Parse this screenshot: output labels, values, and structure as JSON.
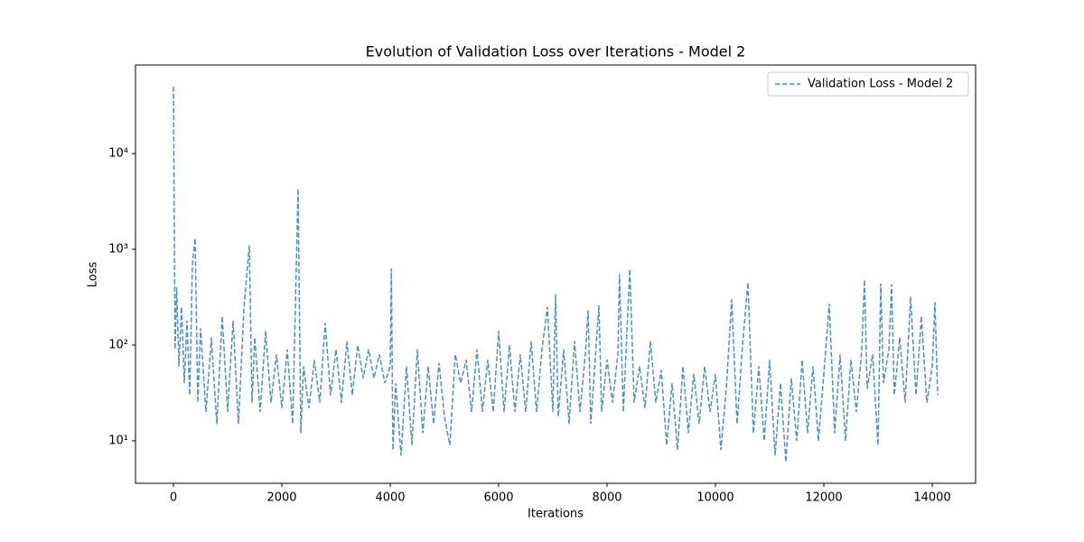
{
  "chart_data": {
    "type": "line",
    "title": "Evolution of Validation Loss over Iterations - Model 2",
    "x_label": "Iterations",
    "y_label": "Loss",
    "x": [
      0,
      30,
      60,
      100,
      150,
      200,
      250,
      300,
      350,
      400,
      450,
      500,
      600,
      700,
      800,
      900,
      1000,
      1100,
      1200,
      1300,
      1400,
      1450,
      1500,
      1600,
      1700,
      1800,
      1900,
      2000,
      2100,
      2200,
      2300,
      2350,
      2400,
      2500,
      2600,
      2700,
      2800,
      2900,
      3000,
      3100,
      3200,
      3300,
      3400,
      3500,
      3600,
      3700,
      3800,
      3900,
      4000,
      4020,
      4050,
      4100,
      4200,
      4300,
      4400,
      4500,
      4600,
      4700,
      4800,
      4900,
      5000,
      5100,
      5200,
      5300,
      5400,
      5500,
      5600,
      5700,
      5800,
      5900,
      6000,
      6100,
      6200,
      6300,
      6400,
      6500,
      6600,
      6700,
      6800,
      6900,
      7000,
      7050,
      7100,
      7200,
      7300,
      7400,
      7500,
      7600,
      7650,
      7700,
      7800,
      7850,
      7900,
      8000,
      8100,
      8200,
      8230,
      8300,
      8420,
      8500,
      8600,
      8700,
      8800,
      8900,
      9000,
      9100,
      9200,
      9300,
      9400,
      9500,
      9600,
      9700,
      9800,
      9900,
      10000,
      10100,
      10200,
      10300,
      10400,
      10500,
      10600,
      10700,
      10800,
      10900,
      11000,
      11100,
      11200,
      11300,
      11400,
      11500,
      11600,
      11700,
      11800,
      11900,
      12000,
      12100,
      12200,
      12300,
      12400,
      12500,
      12600,
      12700,
      12750,
      12800,
      12900,
      13000,
      13050,
      13100,
      13200,
      13250,
      13300,
      13400,
      13500,
      13600,
      13700,
      13800,
      13900,
      14000,
      14050,
      14100
    ],
    "series": [
      {
        "name": "Validation Loss - Model 2",
        "color": "#4b92c6",
        "values": [
          50000,
          90,
          400,
          60,
          250,
          40,
          180,
          30,
          700,
          1300,
          25,
          150,
          20,
          120,
          15,
          200,
          20,
          180,
          15,
          240,
          1100,
          25,
          120,
          20,
          140,
          25,
          80,
          22,
          90,
          15,
          4300,
          12,
          60,
          22,
          70,
          25,
          170,
          30,
          90,
          25,
          110,
          30,
          100,
          45,
          90,
          45,
          80,
          40,
          60,
          630,
          8,
          40,
          7,
          60,
          9,
          90,
          12,
          60,
          15,
          65,
          18,
          9,
          80,
          40,
          70,
          20,
          90,
          20,
          70,
          20,
          140,
          20,
          100,
          20,
          80,
          20,
          110,
          20,
          90,
          250,
          20,
          340,
          18,
          90,
          15,
          110,
          20,
          80,
          230,
          15,
          100,
          260,
          20,
          70,
          25,
          80,
          550,
          20,
          620,
          25,
          60,
          22,
          110,
          25,
          55,
          9,
          40,
          8,
          60,
          12,
          50,
          15,
          60,
          20,
          50,
          8,
          35,
          300,
          15,
          100,
          450,
          12,
          60,
          10,
          70,
          7,
          40,
          6,
          45,
          10,
          70,
          12,
          60,
          10,
          50,
          270,
          12,
          80,
          10,
          70,
          20,
          90,
          480,
          35,
          80,
          9,
          440,
          40,
          90,
          430,
          30,
          120,
          25,
          320,
          30,
          200,
          25,
          60,
          280,
          30
        ]
      }
    ],
    "xlim": [
      -700,
      14800
    ],
    "ylim": [
      3.6,
      84000
    ],
    "y_scale": "log",
    "line_style": "dashed",
    "xticks": [
      0,
      2000,
      4000,
      6000,
      8000,
      10000,
      12000,
      14000
    ],
    "yticks": [
      {
        "value": 10,
        "label": "10¹"
      },
      {
        "value": 100,
        "label": "10²"
      },
      {
        "value": 1000,
        "label": "10³"
      },
      {
        "value": 10000,
        "label": "10⁴"
      }
    ],
    "legend": "upper right"
  }
}
